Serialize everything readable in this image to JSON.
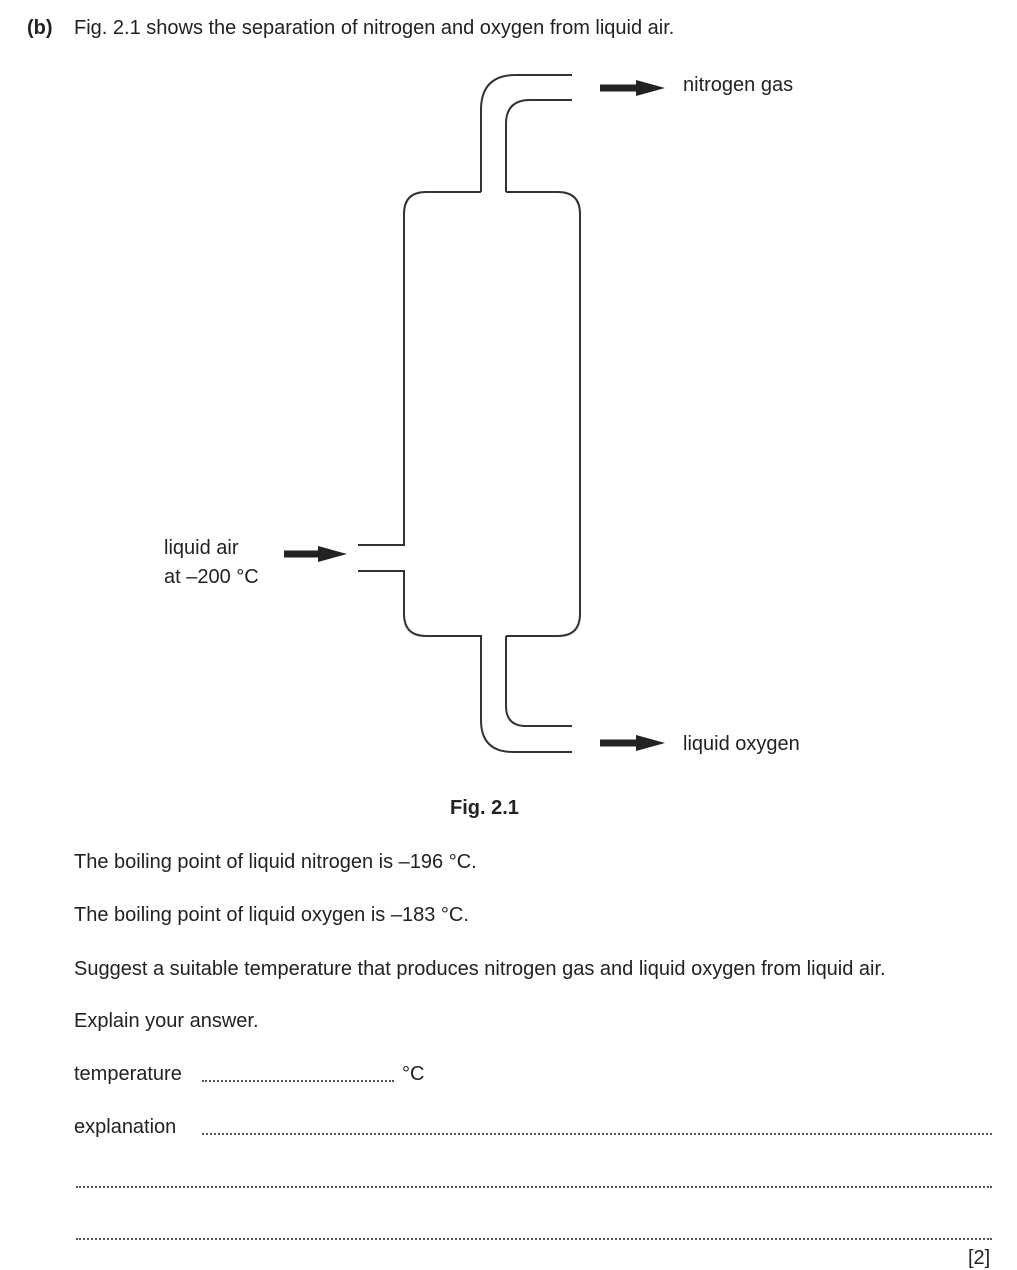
{
  "question": {
    "label": "(b)",
    "intro": "Fig. 2.1 shows the separation of nitrogen and oxygen from liquid air."
  },
  "figure": {
    "labels": {
      "nitrogen_gas": "nitrogen gas",
      "liquid_air": [
        "liquid air",
        "at –200 °C"
      ],
      "liquid_oxygen": "liquid oxygen"
    },
    "caption": "Fig. 2.1"
  },
  "text": [
    "The boiling point of liquid nitrogen is –196 °C.",
    "The boiling point of liquid oxygen is –183 °C.",
    "Suggest a suitable temperature that produces nitrogen gas and liquid oxygen from liquid air.",
    "Explain your answer."
  ],
  "answer": {
    "temperature_label": "temperature",
    "temperature_unit": "°C",
    "explanation_label": "explanation",
    "marks": "[2]"
  }
}
